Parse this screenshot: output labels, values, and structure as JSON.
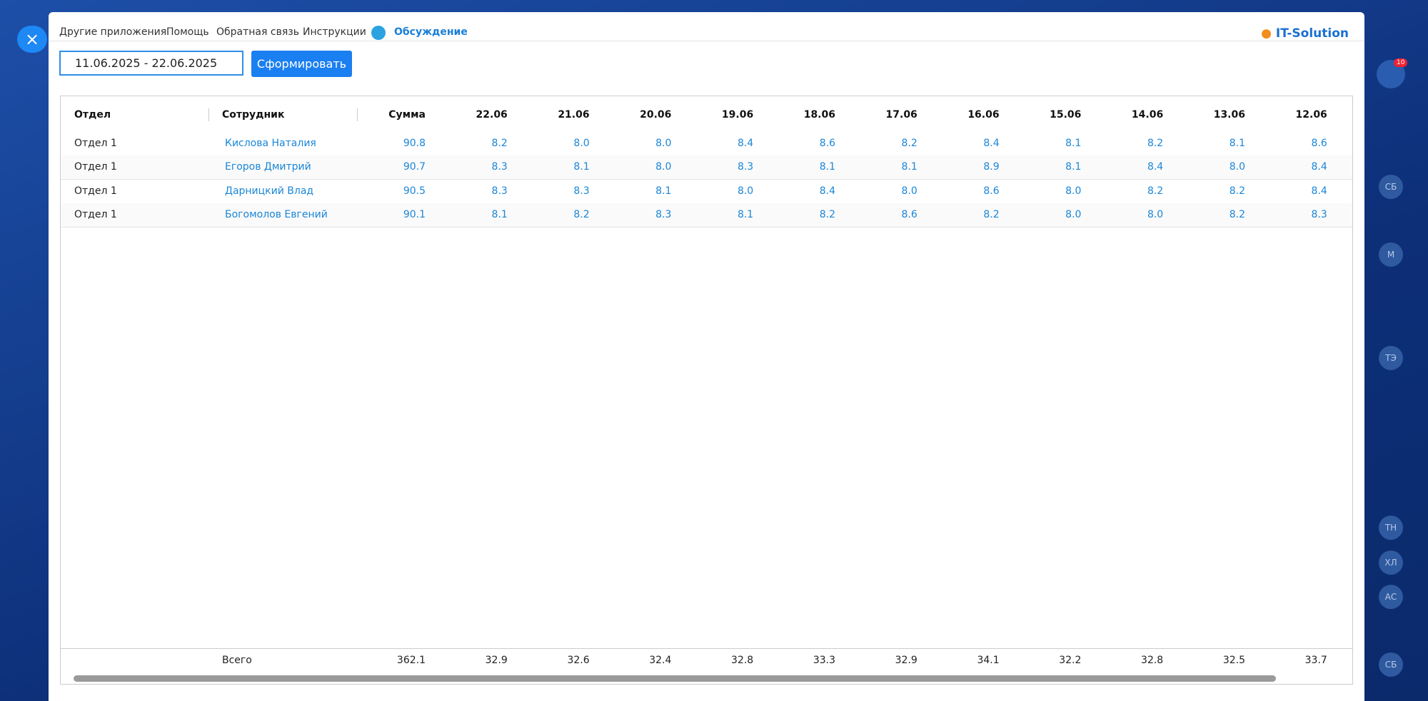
{
  "nav": [
    "Другие приложения",
    "Помощь",
    "Обратная связь",
    "Инструкции",
    "Обсуждение"
  ],
  "brand": "IT-Solution",
  "notifications": "10",
  "date_range": "11.06.2025 - 22.06.2025",
  "button": "Сформировать",
  "table": {
    "columns": [
      "Отдел",
      "Сотрудник",
      "Сумма",
      "22.06",
      "21.06",
      "20.06",
      "19.06",
      "18.06",
      "17.06",
      "16.06",
      "15.06",
      "14.06",
      "13.06",
      "12.06"
    ],
    "rows": [
      [
        "Отдел 1",
        "Кислова Наталия",
        "90.8",
        "8.2",
        "8.0",
        "8.0",
        "8.4",
        "8.6",
        "8.2",
        "8.4",
        "8.1",
        "8.2",
        "8.1",
        "8.6"
      ],
      [
        "Отдел 1",
        "Егоров Дмитрий",
        "90.7",
        "8.3",
        "8.1",
        "8.0",
        "8.3",
        "8.1",
        "8.1",
        "8.9",
        "8.1",
        "8.4",
        "8.0",
        "8.4"
      ],
      [
        "Отдел 1",
        "Дарницкий Влад",
        "90.5",
        "8.3",
        "8.3",
        "8.1",
        "8.0",
        "8.4",
        "8.0",
        "8.6",
        "8.0",
        "8.2",
        "8.2",
        "8.4"
      ],
      [
        "Отдел 1",
        "Богомолов Евгений",
        "90.1",
        "8.1",
        "8.2",
        "8.3",
        "8.1",
        "8.2",
        "8.6",
        "8.2",
        "8.0",
        "8.0",
        "8.2",
        "8.3"
      ]
    ],
    "footer": {
      "label": "Всего",
      "values": [
        "362.1",
        "32.9",
        "32.6",
        "32.4",
        "32.8",
        "33.3",
        "32.9",
        "34.1",
        "32.2",
        "32.8",
        "32.5",
        "33.7"
      ]
    }
  },
  "sidebar": [
    "СБ",
    "М",
    "ТЭ",
    "ТН",
    "ХЛ",
    "АС",
    "СБ"
  ]
}
